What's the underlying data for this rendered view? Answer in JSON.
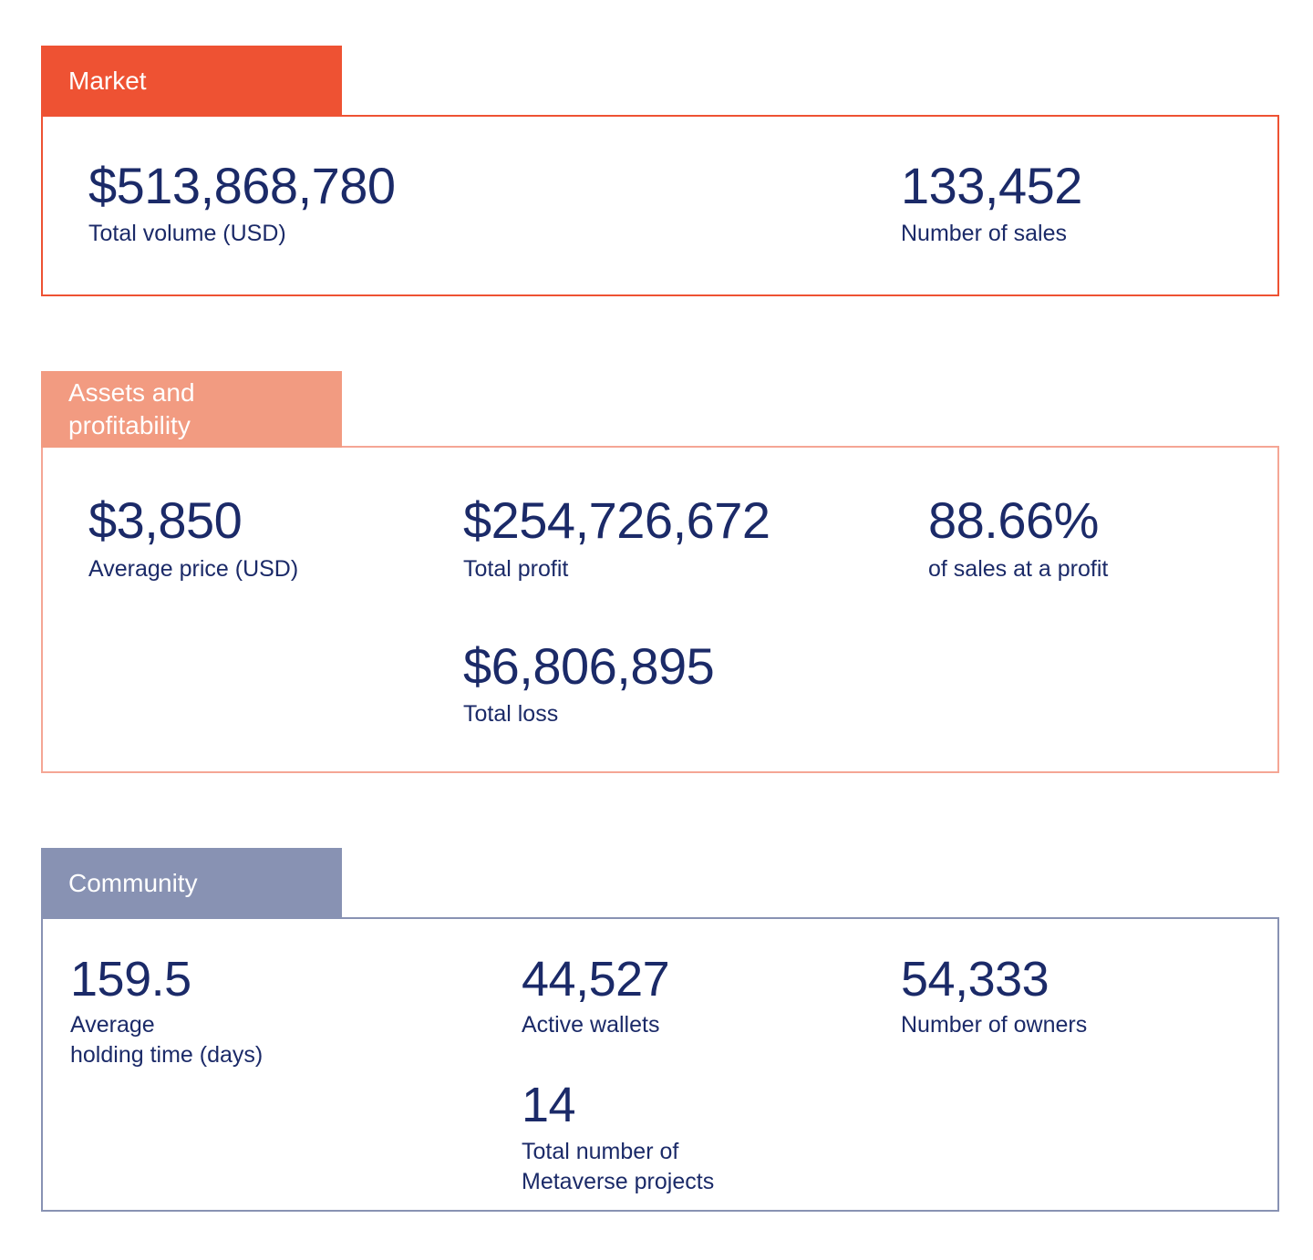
{
  "colors": {
    "orange": "#EE5233",
    "salmon": "#F29B81",
    "salmon_border": "#F5A695",
    "slate": "#8892B3",
    "navy": "#1B2A68",
    "tab_text": "#FFFFFF"
  },
  "sections": [
    {
      "name": "Market",
      "tab_label": "Market",
      "rows": [
        [
          {
            "value": "$513,868,780",
            "label": "Total volume (USD)"
          },
          {
            "value": "133,452",
            "label": "Number of sales"
          }
        ]
      ]
    },
    {
      "name": "Assets and profitability",
      "tab_label": "Assets and\nprofitability",
      "rows": [
        [
          {
            "value": "$3,850",
            "label": "Average price (USD)"
          },
          {
            "value": "$254,726,672",
            "label": "Total profit"
          },
          {
            "value": "88.66%",
            "label": "of sales at a profit"
          }
        ],
        [
          {
            "value": "$6,806,895",
            "label": "Total loss"
          }
        ]
      ]
    },
    {
      "name": "Community",
      "tab_label": "Community",
      "rows": [
        [
          {
            "value": "159.5",
            "label": "Average\nholding time (days)"
          },
          {
            "value": "44,527",
            "label": "Active wallets"
          },
          {
            "value": "54,333",
            "label": "Number of owners"
          }
        ],
        [
          {
            "value": "14",
            "label": "Total number of\nMetaverse projects"
          }
        ]
      ]
    }
  ]
}
